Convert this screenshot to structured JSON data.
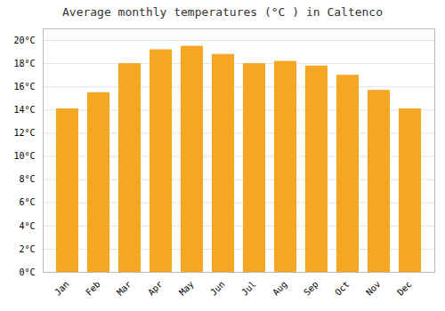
{
  "chart_data": {
    "type": "bar",
    "title": "Average monthly temperatures (°C ) in Caltenco",
    "categories": [
      "Jan",
      "Feb",
      "Mar",
      "Apr",
      "May",
      "Jun",
      "Jul",
      "Aug",
      "Sep",
      "Oct",
      "Nov",
      "Dec"
    ],
    "values": [
      14.1,
      15.5,
      18.0,
      19.2,
      19.5,
      18.8,
      18.0,
      18.2,
      17.8,
      17.0,
      15.7,
      14.1
    ],
    "color": "#F5A623",
    "ylim": [
      0,
      21
    ],
    "yticks": [
      {
        "value": 0,
        "label": "0°C"
      },
      {
        "value": 2,
        "label": "2°C"
      },
      {
        "value": 4,
        "label": "4°C"
      },
      {
        "value": 6,
        "label": "6°C"
      },
      {
        "value": 8,
        "label": "8°C"
      },
      {
        "value": 10,
        "label": "10°C"
      },
      {
        "value": 12,
        "label": "12°C"
      },
      {
        "value": 14,
        "label": "14°C"
      },
      {
        "value": 16,
        "label": "16°C"
      },
      {
        "value": 18,
        "label": "18°C"
      },
      {
        "value": 20,
        "label": "20°C"
      }
    ],
    "grid": true
  }
}
